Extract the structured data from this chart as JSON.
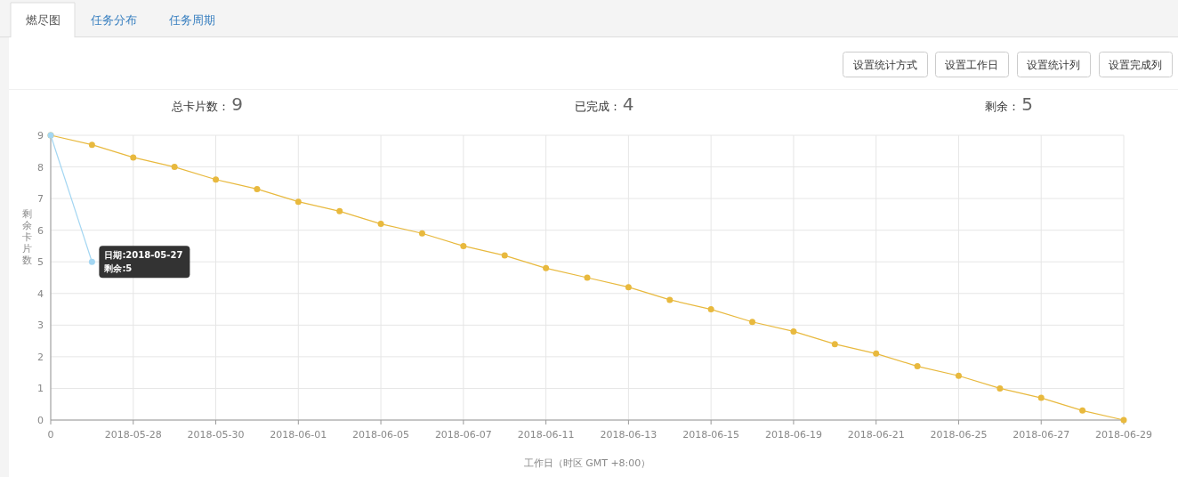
{
  "chart_data": [
    {
      "type": "other",
      "annotations": [
        "燃尽图",
        "任务分布",
        "任务周期",
        "设置统计方式",
        "设置工作日",
        "设置统计列",
        "设置完成列",
        "总卡片数：",
        "9",
        "已完成：",
        "4",
        "剩余：",
        "5"
      ]
    },
    {
      "type": "line",
      "xlabel": "工作日（时区 GMT +8:00）",
      "ylabel": "剩余卡片数",
      "categories": [
        "0",
        null,
        "2018-05-28",
        null,
        "2018-05-30",
        null,
        "2018-06-01",
        null,
        "2018-06-05",
        null,
        "2018-06-07",
        null,
        "2018-06-11",
        null,
        "2018-06-13",
        null,
        "2018-06-15",
        null,
        "2018-06-19",
        null,
        "2018-06-21",
        null,
        "2018-06-25",
        null,
        "2018-06-27",
        null,
        "2018-06-29"
      ],
      "series": [
        {
          "color": "#a3d6f2",
          "values": [
            9,
            5,
            null,
            null,
            null,
            null,
            null,
            null,
            null,
            null,
            null,
            null,
            null,
            null,
            null,
            null,
            null,
            null,
            null,
            null,
            null,
            null,
            null,
            null,
            null,
            null,
            null
          ]
        },
        {
          "color": "#e8b93e",
          "values": [
            9,
            8.7,
            8.3,
            8.0,
            7.6,
            7.3,
            6.9,
            6.6,
            6.2,
            5.9,
            5.5,
            5.2,
            4.8,
            4.5,
            4.2,
            3.8,
            3.5,
            3.1,
            2.8,
            2.4,
            2.1,
            1.7,
            1.4,
            1.0,
            0.7,
            0.3,
            0
          ]
        }
      ],
      "ylim": [
        0,
        9
      ],
      "yticks": [
        0,
        1,
        2,
        3,
        4,
        5,
        6,
        7,
        8,
        9
      ],
      "grid": true,
      "marker": "circle",
      "line_style": "solid",
      "annotations": [
        "日期:2018-05-27",
        "剩余:5"
      ]
    }
  ]
}
